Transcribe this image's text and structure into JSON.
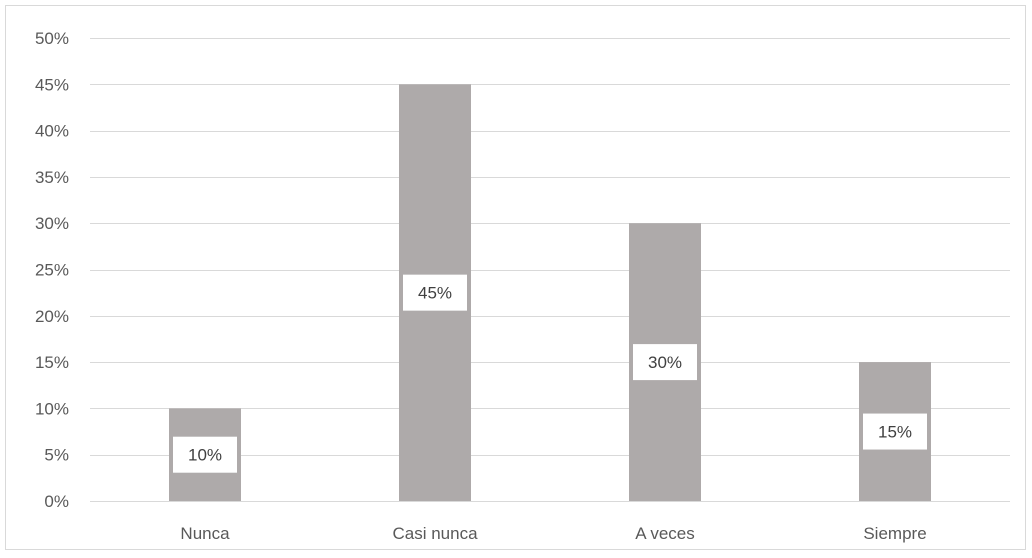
{
  "chart_data": {
    "type": "bar",
    "title": "",
    "xlabel": "",
    "ylabel": "",
    "categories": [
      "Nunca",
      "Casi nunca",
      "A veces",
      "Siempre"
    ],
    "values": [
      0.1,
      0.45,
      0.3,
      0.15
    ],
    "data_labels": [
      "10%",
      "45%",
      "30%",
      "15%"
    ],
    "ylim": [
      0,
      0.5
    ],
    "yticks": [
      0,
      0.05,
      0.1,
      0.15,
      0.2,
      0.25,
      0.3,
      0.35,
      0.4,
      0.45,
      0.5
    ],
    "ytick_labels": [
      "0%",
      "5%",
      "10%",
      "15%",
      "20%",
      "25%",
      "30%",
      "35%",
      "40%",
      "45%",
      "50%"
    ],
    "grid": true,
    "legend": "none",
    "bar_color": "#aeaaaa",
    "grid_color": "#d9d9d9",
    "label_background": "#ffffff"
  }
}
